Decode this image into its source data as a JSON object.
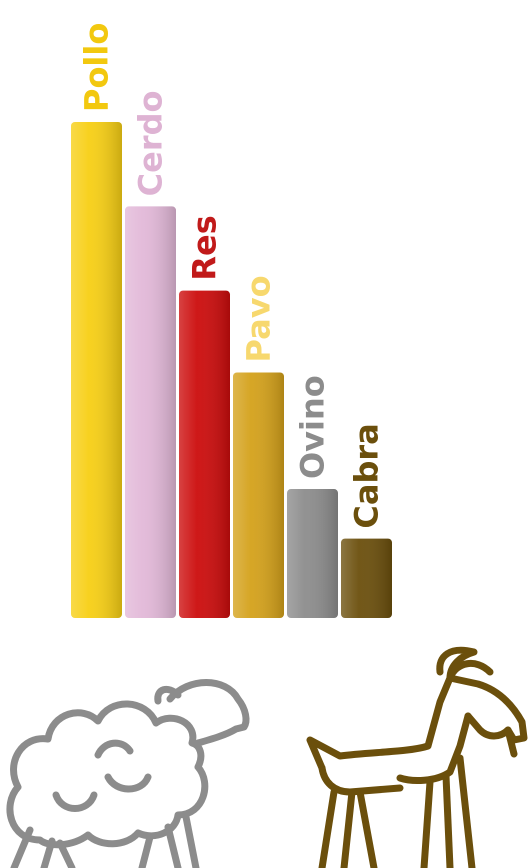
{
  "chart_data": {
    "type": "bar",
    "categories": [
      "Pollo",
      "Cerdo",
      "Res",
      "Pavo",
      "Ovino",
      "Cabra"
    ],
    "values": [
      100,
      83,
      66,
      49.5,
      26,
      16
    ],
    "colors": [
      "#f7cf14",
      "#e2b8d8",
      "#cc0c0c",
      "#d4a11a",
      "#8c8c8c",
      "#6b4f0c"
    ],
    "label_colors": [
      "#f2c80f",
      "#deb3d3",
      "#c11a1a",
      "#f7d86e",
      "#8c8c8c",
      "#6b4f0c"
    ],
    "ylim": [
      0,
      100
    ],
    "grid": false,
    "legend": "none"
  },
  "illustrations": [
    {
      "icon": "sheep-icon",
      "color": "#8c8c8c"
    },
    {
      "icon": "goat-icon",
      "color": "#6b4f0c"
    }
  ]
}
